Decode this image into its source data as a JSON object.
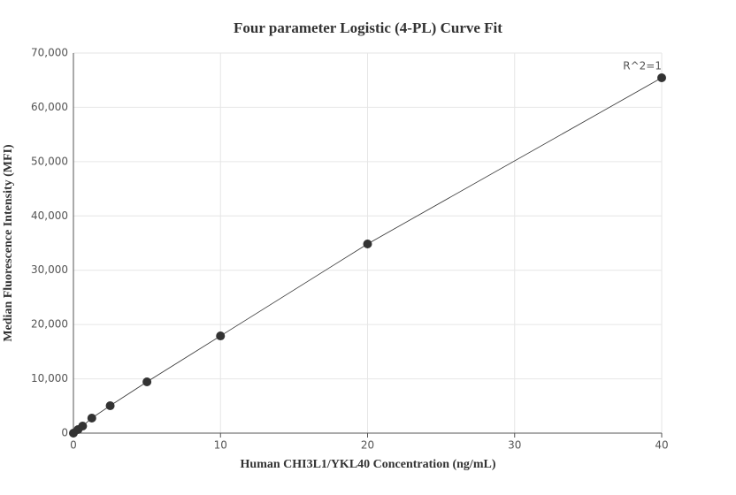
{
  "chart_data": {
    "type": "scatter",
    "title": "Four parameter Logistic (4-PL) Curve Fit",
    "x_label": "Human CHI3L1/YKL40 Concentration (ng/mL)",
    "y_label": "Median Fluorescence Intensity (MFI)",
    "annotation": "R^2=1",
    "x": [
      0,
      0.3125,
      0.625,
      1.25,
      2.5,
      5,
      10,
      20,
      40
    ],
    "series": [
      {
        "color": "#333333",
        "values": [
          0,
          650,
          1300,
          2770,
          5050,
          9440,
          17900,
          34840,
          65440
        ]
      }
    ],
    "xlim": [
      0,
      40
    ],
    "xticks": [
      0,
      10,
      20,
      30,
      40
    ],
    "ylim": [
      0,
      70000
    ],
    "yticks": [
      0,
      {
        "value": 10000,
        "label": "10,000"
      },
      {
        "value": 20000,
        "label": "20,000"
      },
      {
        "value": 30000,
        "label": "30,000"
      },
      {
        "value": 40000,
        "label": "40,000"
      },
      {
        "value": 50000,
        "label": "50,000"
      },
      {
        "value": 60000,
        "label": "60,000"
      },
      {
        "value": 70000,
        "label": "70,000"
      }
    ],
    "grid": true
  }
}
